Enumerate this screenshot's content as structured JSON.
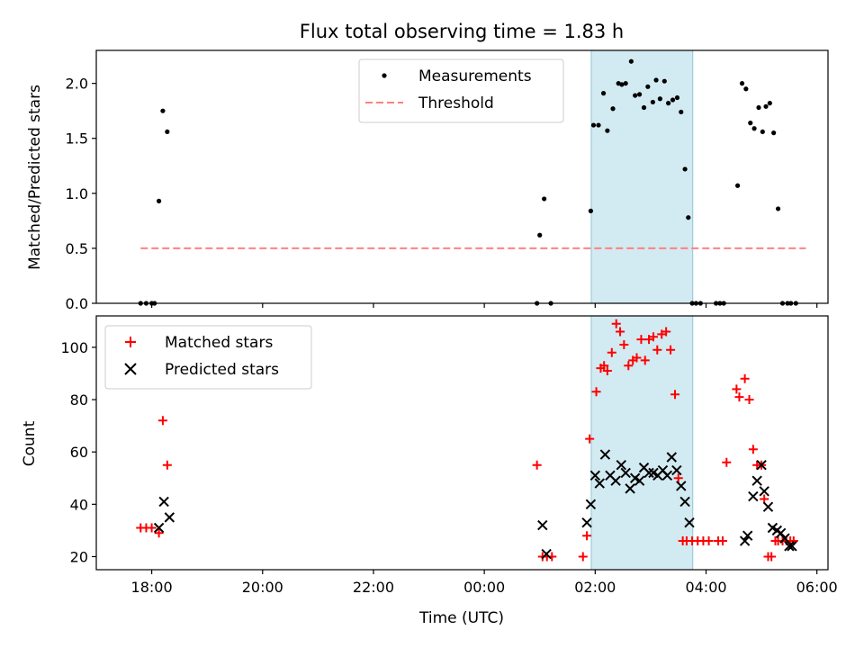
{
  "chart_data": {
    "title": "Flux total observing time = 1.83 h",
    "type": "scatter",
    "xlabel": "Time (UTC)",
    "x_unit": "hours since 00:00 UTC",
    "x_range": [
      -7.0,
      6.2
    ],
    "x_ticks": [
      {
        "value": -6,
        "label": "18:00"
      },
      {
        "value": -4,
        "label": "20:00"
      },
      {
        "value": -2,
        "label": "22:00"
      },
      {
        "value": 0,
        "label": "00:00"
      },
      {
        "value": 2,
        "label": "02:00"
      },
      {
        "value": 4,
        "label": "04:00"
      },
      {
        "value": 6,
        "label": "06:00"
      }
    ],
    "highlight_span": {
      "start": 1.93,
      "end": 3.76,
      "color": "#add8e6"
    },
    "panels": [
      {
        "id": "ratio",
        "ylabel": "Matched/Predicted stars",
        "ylim": [
          0,
          2.3
        ],
        "y_ticks": [
          "0.0",
          "0.5",
          "1.0",
          "1.5",
          "2.0"
        ],
        "y_tick_values": [
          0,
          0.5,
          1.0,
          1.5,
          2.0
        ],
        "legend": {
          "placement": "upper-center",
          "entries": [
            {
              "label": "Measurements",
              "marker": "dot",
              "color": "#000000"
            },
            {
              "label": "Threshold",
              "marker": "dashed-line",
              "color": "#ff8080"
            }
          ]
        },
        "threshold": {
          "value": 0.5,
          "x_start": -6.2,
          "x_end": 5.8,
          "color": "#ff8080"
        },
        "series": [
          {
            "name": "Measurements",
            "color": "#000000",
            "x": [
              -6.2,
              -6.1,
              -6.0,
              -5.95,
              -5.87,
              -5.8,
              -5.72,
              0.95,
              1.0,
              1.08,
              1.2,
              1.92,
              1.97,
              2.06,
              2.15,
              2.22,
              2.32,
              2.42,
              2.48,
              2.55,
              2.65,
              2.72,
              2.8,
              2.88,
              2.95,
              3.04,
              3.1,
              3.17,
              3.25,
              3.32,
              3.4,
              3.48,
              3.55,
              3.62,
              3.68,
              3.75,
              3.82,
              3.9,
              4.18,
              4.25,
              4.32,
              4.57,
              4.65,
              4.72,
              4.8,
              4.87,
              4.95,
              5.02,
              5.08,
              5.15,
              5.22,
              5.3,
              5.38,
              5.47,
              5.53,
              5.62
            ],
            "y": [
              0,
              0,
              0,
              0,
              0.93,
              1.75,
              1.56,
              0,
              0.62,
              0.95,
              0,
              0.84,
              1.62,
              1.62,
              1.91,
              1.57,
              1.77,
              2.0,
              1.99,
              2.0,
              2.2,
              1.89,
              1.9,
              1.78,
              1.97,
              1.83,
              2.03,
              1.86,
              2.02,
              1.82,
              1.85,
              1.87,
              1.74,
              1.22,
              0.78,
              0,
              0,
              0,
              0,
              0,
              0,
              1.07,
              2.0,
              1.95,
              1.64,
              1.59,
              1.78,
              1.56,
              1.79,
              1.82,
              1.55,
              0.86,
              0,
              0,
              0,
              0
            ]
          }
        ]
      },
      {
        "id": "count",
        "ylabel": "Count",
        "ylim": [
          15,
          112
        ],
        "y_ticks": [
          "20",
          "40",
          "60",
          "80",
          "100"
        ],
        "y_tick_values": [
          20,
          40,
          60,
          80,
          100
        ],
        "legend": {
          "placement": "upper-left",
          "entries": [
            {
              "label": "Matched stars",
              "marker": "plus",
              "color": "#ff0000"
            },
            {
              "label": "Predicted stars",
              "marker": "x",
              "color": "#000000"
            }
          ]
        },
        "series": [
          {
            "name": "Matched stars",
            "marker": "plus",
            "color": "#ff0000",
            "x": [
              -6.2,
              -6.1,
              -6.0,
              -5.87,
              -5.8,
              -5.72,
              0.95,
              1.05,
              1.13,
              1.22,
              1.78,
              1.85,
              1.9,
              2.02,
              2.1,
              2.16,
              2.22,
              2.3,
              2.38,
              2.45,
              2.52,
              2.6,
              2.68,
              2.75,
              2.83,
              2.9,
              2.97,
              3.05,
              3.12,
              3.2,
              3.28,
              3.36,
              3.44,
              3.5,
              3.58,
              3.65,
              3.75,
              3.85,
              3.95,
              4.05,
              4.22,
              4.3,
              4.37,
              4.55,
              4.6,
              4.7,
              4.78,
              4.85,
              4.92,
              5.0,
              5.05,
              5.12,
              5.18,
              5.25,
              5.3,
              5.38,
              5.45,
              5.52,
              5.58
            ],
            "y": [
              31,
              31,
              31,
              29,
              72,
              55,
              55,
              20,
              20,
              20,
              20,
              28,
              65,
              83,
              92,
              93,
              91,
              98,
              109,
              106,
              101,
              93,
              95,
              96,
              103,
              95,
              103,
              104,
              99,
              105,
              106,
              99,
              82,
              50,
              26,
              26,
              26,
              26,
              26,
              26,
              26,
              26,
              56,
              84,
              81,
              88,
              80,
              61,
              55,
              55,
              42,
              20,
              20,
              26,
              26,
              26,
              26,
              26,
              26
            ],
            "exact_y_note": "values estimated from gridlines"
          },
          {
            "name": "Predicted stars",
            "marker": "x",
            "color": "#000000",
            "x": [
              -5.87,
              -5.78,
              -5.68,
              1.05,
              1.12,
              1.85,
              1.92,
              2.0,
              2.08,
              2.18,
              2.27,
              2.37,
              2.47,
              2.55,
              2.63,
              2.72,
              2.8,
              2.88,
              2.97,
              3.05,
              3.13,
              3.22,
              3.3,
              3.38,
              3.47,
              3.55,
              3.62,
              3.7,
              4.7,
              4.75,
              4.85,
              4.92,
              5.0,
              5.05,
              5.12,
              5.2,
              5.28,
              5.35,
              5.42,
              5.5,
              5.55
            ],
            "y": [
              31,
              41,
              35,
              32,
              21,
              33,
              40,
              51,
              48,
              59,
              51,
              49,
              55,
              52,
              46,
              50,
              49,
              54,
              52,
              52,
              51,
              53,
              51,
              58,
              53,
              47,
              41,
              33,
              26,
              28,
              43,
              49,
              55,
              45,
              39,
              31,
              30,
              29,
              27,
              24,
              24
            ]
          }
        ]
      }
    ]
  }
}
